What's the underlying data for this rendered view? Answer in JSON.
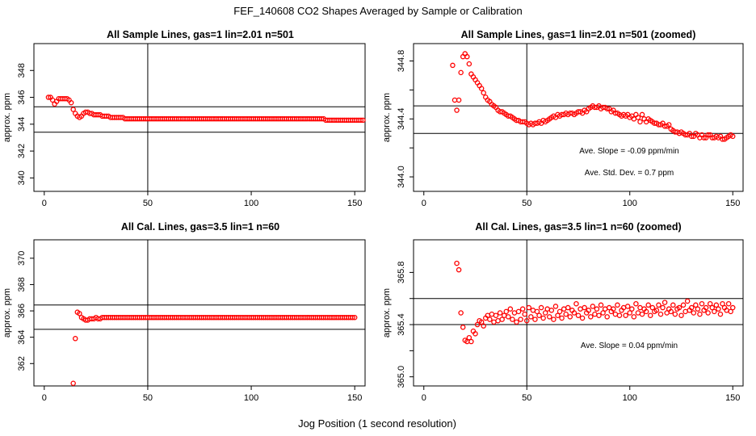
{
  "figure": {
    "title": "FEF_140608  CO2 Shapes Averaged by Sample or Calibration",
    "xlabel": "Jog Position (1 second resolution)"
  },
  "chart_data": [
    {
      "type": "scatter",
      "title": "All Sample Lines, gas=1 lin=2.01 n=501",
      "xlabel": "",
      "ylabel": "approx. ppm",
      "xlim": [
        -5,
        155
      ],
      "ylim": [
        339,
        350
      ],
      "xticks": [
        0,
        50,
        100,
        150
      ],
      "yticks": [
        340,
        342,
        344,
        346,
        348
      ],
      "vline": 50,
      "hlines": [
        345.3,
        343.4
      ],
      "marker_color": "#ff0000",
      "series": [
        {
          "x_start": 2,
          "x_step": 1,
          "values": [
            346.0,
            346.0,
            345.8,
            345.5,
            345.7,
            345.9,
            345.9,
            345.9,
            345.9,
            345.9,
            345.8,
            345.6,
            345.1,
            344.8,
            344.6,
            344.5,
            344.6,
            344.8,
            344.9,
            344.9,
            344.8,
            344.8,
            344.7,
            344.7,
            344.7,
            344.7,
            344.6,
            344.6,
            344.6,
            344.6,
            344.5,
            344.5,
            344.5,
            344.5,
            344.5,
            344.5,
            344.5,
            344.4,
            344.4,
            344.4,
            344.4,
            344.4,
            344.4,
            344.4,
            344.4,
            344.4,
            344.4,
            344.4,
            344.4,
            344.4,
            344.4,
            344.4,
            344.4,
            344.4,
            344.4,
            344.4,
            344.4,
            344.4,
            344.4,
            344.4,
            344.4,
            344.4,
            344.4,
            344.4,
            344.4,
            344.4,
            344.4,
            344.4,
            344.4,
            344.4,
            344.4,
            344.4,
            344.4,
            344.4,
            344.4,
            344.4,
            344.4,
            344.4,
            344.4,
            344.4,
            344.4,
            344.4,
            344.4,
            344.4,
            344.4,
            344.4,
            344.4,
            344.4,
            344.4,
            344.4,
            344.4,
            344.4,
            344.4,
            344.4,
            344.4,
            344.4,
            344.4,
            344.4,
            344.4,
            344.4,
            344.4,
            344.4,
            344.4,
            344.4,
            344.4,
            344.4,
            344.4,
            344.4,
            344.4,
            344.4,
            344.4,
            344.4,
            344.4,
            344.4,
            344.4,
            344.4,
            344.4,
            344.4,
            344.4,
            344.4,
            344.4,
            344.4,
            344.4,
            344.4,
            344.4,
            344.4,
            344.4,
            344.4,
            344.4,
            344.4,
            344.4,
            344.4,
            344.4,
            344.4,
            344.3,
            344.3,
            344.3,
            344.3,
            344.3,
            344.3,
            344.3,
            344.3,
            344.3,
            344.3,
            344.3,
            344.3,
            344.3,
            344.3,
            344.3,
            344.3,
            344.3,
            344.3,
            344.3
          ]
        }
      ],
      "annotations": []
    },
    {
      "type": "scatter",
      "title": "All Sample Lines, gas=1 lin=2.01 n=501 (zoomed)",
      "xlabel": "",
      "ylabel": "approx. ppm",
      "xlim": [
        -5,
        155
      ],
      "ylim": [
        343.9,
        344.92
      ],
      "xticks": [
        0,
        50,
        100,
        150
      ],
      "yticks": [
        344.0,
        344.2,
        344.4,
        344.6,
        344.8
      ],
      "ytick_labels": [
        "344.0",
        "",
        "344.4",
        "",
        "344.8"
      ],
      "vline": 50,
      "hlines": [
        344.49,
        344.3
      ],
      "marker_color": "#ff0000",
      "series": [
        {
          "x_start": 14,
          "x_step": 1,
          "values": [
            344.77,
            344.53,
            344.46,
            344.53,
            344.72,
            344.83,
            344.85,
            344.83,
            344.78,
            344.71,
            344.69,
            344.67,
            344.65,
            344.63,
            344.61,
            344.58,
            344.55,
            344.53,
            344.52,
            344.5,
            344.49,
            344.48,
            344.46,
            344.45,
            344.45,
            344.44,
            344.43,
            344.42,
            344.42,
            344.41,
            344.4,
            344.39,
            344.39,
            344.38,
            344.38,
            344.38,
            344.37,
            344.36,
            344.37,
            344.36,
            344.37,
            344.37,
            344.38,
            344.37,
            344.39,
            344.38,
            344.39,
            344.4,
            344.41,
            344.42,
            344.41,
            344.43,
            344.42,
            344.43,
            344.43,
            344.44,
            344.43,
            344.44,
            344.44,
            344.43,
            344.44,
            344.45,
            344.45,
            344.44,
            344.46,
            344.45,
            344.47,
            344.48,
            344.49,
            344.48,
            344.48,
            344.49,
            344.47,
            344.48,
            344.48,
            344.47,
            344.47,
            344.45,
            344.46,
            344.44,
            344.44,
            344.43,
            344.42,
            344.43,
            344.42,
            344.43,
            344.41,
            344.42,
            344.4,
            344.43,
            344.41,
            344.38,
            344.43,
            344.4,
            344.38,
            344.4,
            344.39,
            344.38,
            344.37,
            344.37,
            344.36,
            344.36,
            344.37,
            344.35,
            344.35,
            344.36,
            344.33,
            344.32,
            344.31,
            344.31,
            344.3,
            344.31,
            344.3,
            344.29,
            344.29,
            344.3,
            344.28,
            344.28,
            344.3,
            344.29,
            344.27,
            344.29,
            344.27,
            344.27,
            344.29,
            344.29,
            344.27,
            344.27,
            344.28,
            344.27,
            344.28,
            344.26,
            344.26,
            344.27,
            344.28,
            344.29,
            344.28
          ]
        }
      ],
      "annotations": [
        "Ave. Slope =  -0.09  ppm/min",
        "Ave. Std. Dev. =  0.7  ppm"
      ]
    },
    {
      "type": "scatter",
      "title": "All Cal. Lines, gas=3.5 lin=1 n=60",
      "xlabel": "",
      "ylabel": "approx. ppm",
      "xlim": [
        -5,
        155
      ],
      "ylim": [
        360.3,
        371.4
      ],
      "xticks": [
        0,
        50,
        100,
        150
      ],
      "yticks": [
        362,
        364,
        366,
        368,
        370
      ],
      "vline": 50,
      "hlines": [
        366.45,
        364.6
      ],
      "marker_color": "#ff0000",
      "series": [
        {
          "x_start": 14,
          "x_step": 1,
          "values": [
            360.5,
            363.9,
            365.9,
            365.8,
            365.5,
            365.4,
            365.3,
            365.3,
            365.4,
            365.4,
            365.4,
            365.5,
            365.4,
            365.4,
            365.5,
            365.5,
            365.5,
            365.5,
            365.5,
            365.5,
            365.5,
            365.5,
            365.5,
            365.5,
            365.5,
            365.5,
            365.5,
            365.5,
            365.5,
            365.5,
            365.5,
            365.5,
            365.5,
            365.5,
            365.5,
            365.5,
            365.5,
            365.5,
            365.5,
            365.5,
            365.5,
            365.5,
            365.5,
            365.5,
            365.5,
            365.5,
            365.5,
            365.5,
            365.5,
            365.5,
            365.5,
            365.5,
            365.5,
            365.5,
            365.5,
            365.5,
            365.5,
            365.5,
            365.5,
            365.5,
            365.5,
            365.5,
            365.5,
            365.5,
            365.5,
            365.5,
            365.5,
            365.5,
            365.5,
            365.5,
            365.5,
            365.5,
            365.5,
            365.5,
            365.5,
            365.5,
            365.5,
            365.5,
            365.5,
            365.5,
            365.5,
            365.5,
            365.5,
            365.5,
            365.5,
            365.5,
            365.5,
            365.5,
            365.5,
            365.5,
            365.5,
            365.5,
            365.5,
            365.5,
            365.5,
            365.5,
            365.5,
            365.5,
            365.5,
            365.5,
            365.5,
            365.5,
            365.5,
            365.5,
            365.5,
            365.5,
            365.5,
            365.5,
            365.5,
            365.5,
            365.5,
            365.5,
            365.5,
            365.5,
            365.5,
            365.5,
            365.5,
            365.5,
            365.5,
            365.5,
            365.5,
            365.5,
            365.5,
            365.5,
            365.5,
            365.5,
            365.5,
            365.5,
            365.5,
            365.5,
            365.5,
            365.5,
            365.5,
            365.5,
            365.5,
            365.5,
            365.5
          ]
        }
      ],
      "annotations": []
    },
    {
      "type": "scatter",
      "title": "All Cal. Lines, gas=3.5 lin=1 n=60 (zoomed)",
      "xlabel": "",
      "ylabel": "approx. ppm",
      "xlim": [
        -5,
        155
      ],
      "ylim": [
        364.93,
        366.05
      ],
      "xticks": [
        0,
        50,
        100,
        150
      ],
      "yticks": [
        365.0,
        365.2,
        365.4,
        365.6,
        365.8
      ],
      "ytick_labels": [
        "365.0",
        "",
        "365.4",
        "",
        "365.8"
      ],
      "vline": 50,
      "hlines": [
        365.6,
        365.4
      ],
      "marker_color": "#ff0000",
      "series": [
        {
          "x_start": 16,
          "x_step": 1,
          "values": [
            365.87,
            365.82,
            365.49,
            365.38,
            365.28,
            365.27,
            365.3,
            365.27,
            365.35,
            365.33,
            365.4,
            365.43,
            365.42,
            365.39,
            365.45,
            365.47,
            365.44,
            365.48,
            365.42,
            365.47,
            365.43,
            365.49,
            365.44,
            365.47,
            365.5,
            365.46,
            365.52,
            365.44,
            365.49,
            365.42,
            365.5,
            365.44,
            365.52,
            365.48,
            365.43,
            365.53,
            365.46,
            365.51,
            365.44,
            365.5,
            365.47,
            365.53,
            365.45,
            365.49,
            365.52,
            365.46,
            365.51,
            365.44,
            365.54,
            365.47,
            365.5,
            365.45,
            365.52,
            365.48,
            365.53,
            365.46,
            365.51,
            365.49,
            365.56,
            365.47,
            365.52,
            365.45,
            365.53,
            365.49,
            365.51,
            365.46,
            365.54,
            365.48,
            365.52,
            365.47,
            365.55,
            365.49,
            365.52,
            365.46,
            365.53,
            365.5,
            365.52,
            365.48,
            365.55,
            365.47,
            365.51,
            365.53,
            365.47,
            365.54,
            365.49,
            365.52,
            365.46,
            365.56,
            365.49,
            365.53,
            365.48,
            365.52,
            365.5,
            365.55,
            365.47,
            365.53,
            365.5,
            365.51,
            365.55,
            365.48,
            365.53,
            365.57,
            365.49,
            365.52,
            365.5,
            365.55,
            365.48,
            365.52,
            365.53,
            365.47,
            365.55,
            365.5,
            365.58,
            365.51,
            365.53,
            365.49,
            365.55,
            365.52,
            365.48,
            365.56,
            365.51,
            365.53,
            365.49,
            365.56,
            365.53,
            365.5,
            365.55,
            365.52,
            365.48,
            365.56,
            365.53,
            365.51,
            365.56,
            365.5,
            365.53
          ]
        }
      ],
      "annotations": [
        "Ave. Slope =  0.04  ppm/min"
      ]
    }
  ]
}
